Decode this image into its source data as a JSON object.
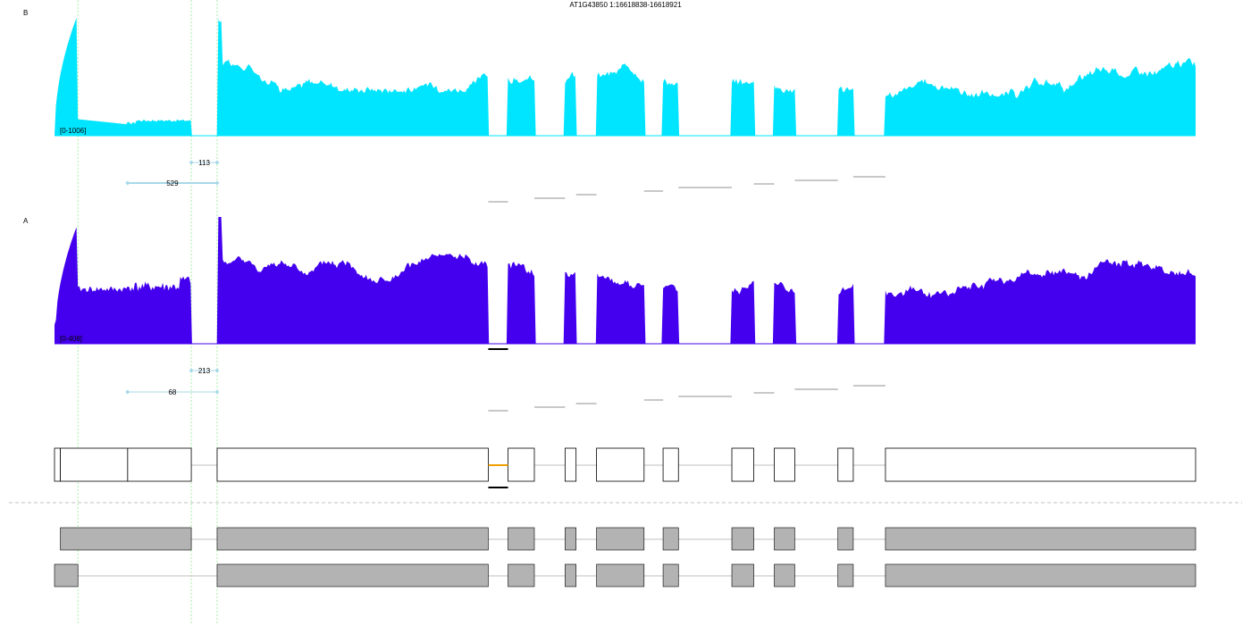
{
  "title": "AT1G43850 1:16618838-16618921",
  "colors": {
    "sample_b": "#00e5ff",
    "sample_a": "#4400ee",
    "junction": "#a8d8e8",
    "highlight": "#f0a000",
    "transcript_fill": "#b3b3b3",
    "guide": "#90ee90"
  },
  "chart_data": {
    "type": "area",
    "x_unit": "genomic position (bp)",
    "samples": [
      {
        "label": "B",
        "range_label": "[0-1006]",
        "ylim": [
          0,
          1006
        ],
        "junctions": [
          {
            "label": "113",
            "from": 1870,
            "to": 2223
          },
          {
            "label": "529",
            "from": 1000,
            "to": 2223
          }
        ]
      },
      {
        "label": "A",
        "range_label": "[0-408]",
        "ylim": [
          0,
          408
        ],
        "junctions": [
          {
            "label": "213",
            "from": 1870,
            "to": 2223
          },
          {
            "label": "68",
            "from": 1000,
            "to": 2223
          }
        ]
      }
    ],
    "query_region": [
      5930,
      6200
    ],
    "exons": [
      {
        "start": 1000,
        "end": 1870
      },
      {
        "start": 2223,
        "end": 5930
      },
      {
        "start": 6200,
        "end": 6560
      },
      {
        "start": 6980,
        "end": 7130
      },
      {
        "start": 7410,
        "end": 8060
      },
      {
        "start": 8320,
        "end": 8530
      },
      {
        "start": 9260,
        "end": 9560
      },
      {
        "start": 9840,
        "end": 10120
      },
      {
        "start": 10710,
        "end": 10920
      },
      {
        "start": 11360,
        "end": 15600
      }
    ],
    "combined_model": {
      "segments": [
        {
          "start": 0,
          "end": 80
        },
        {
          "start": 80,
          "end": 1000
        },
        {
          "start": 1000,
          "end": 1870
        },
        {
          "start": 2223,
          "end": 5930
        },
        {
          "start": 6200,
          "end": 6560
        },
        {
          "start": 6980,
          "end": 7130
        },
        {
          "start": 7410,
          "end": 8060
        },
        {
          "start": 8320,
          "end": 8530
        },
        {
          "start": 9260,
          "end": 9560
        },
        {
          "start": 9840,
          "end": 10120
        },
        {
          "start": 10710,
          "end": 10920
        },
        {
          "start": 11360,
          "end": 15600
        }
      ],
      "highlight_intron": [
        5930,
        6200
      ]
    },
    "transcripts": [
      {
        "exons": [
          [
            80,
            1870
          ],
          [
            2223,
            5930
          ],
          [
            6200,
            6560
          ],
          [
            6980,
            7130
          ],
          [
            7410,
            8060
          ],
          [
            8320,
            8530
          ],
          [
            9260,
            9560
          ],
          [
            9840,
            10120
          ],
          [
            10710,
            10920
          ],
          [
            11360,
            15600
          ]
        ]
      },
      {
        "exons": [
          [
            0,
            320
          ],
          [
            2223,
            5930
          ],
          [
            6200,
            6560
          ],
          [
            6980,
            7130
          ],
          [
            7410,
            8060
          ],
          [
            8320,
            8530
          ],
          [
            9260,
            9560
          ],
          [
            9840,
            10120
          ],
          [
            10710,
            10920
          ],
          [
            11360,
            15600
          ]
        ]
      }
    ],
    "guides": [
      320,
      1870,
      2223
    ],
    "xlim": [
      0,
      15600
    ]
  }
}
